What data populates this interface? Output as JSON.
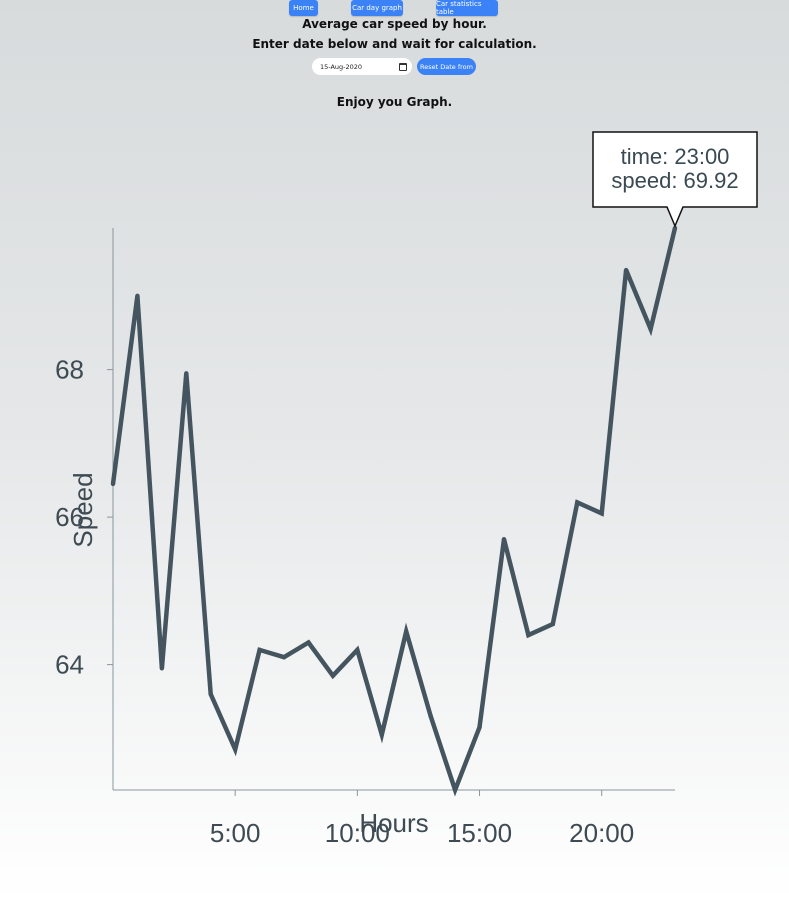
{
  "nav": {
    "home": "Home",
    "day_graph": "Car day graph",
    "stats_table": "Car statistics table"
  },
  "header": {
    "title": "Average car speed by hour.",
    "instruction": "Enter date below and wait for calculation.",
    "footer_text": "Enjoy you Graph."
  },
  "form": {
    "date_value": "15-Aug-2020",
    "reset_label": "Reset Date from"
  },
  "tooltip": {
    "time_line": "time: 23:00",
    "speed_line": "speed: 69.92"
  },
  "colors": {
    "line": "#455560",
    "accent": "#3b82f6"
  },
  "chart_data": {
    "type": "line",
    "xlabel": "Hours",
    "ylabel": "Speed",
    "x": [
      0,
      1,
      2,
      3,
      4,
      5,
      6,
      7,
      8,
      9,
      10,
      11,
      12,
      13,
      14,
      15,
      16,
      17,
      18,
      19,
      20,
      21,
      22,
      23
    ],
    "values": [
      66.45,
      69.0,
      63.95,
      67.95,
      63.6,
      62.85,
      64.2,
      64.1,
      64.3,
      63.85,
      64.2,
      63.05,
      64.45,
      63.3,
      62.3,
      63.15,
      65.7,
      64.4,
      64.55,
      66.2,
      66.05,
      69.35,
      68.55,
      69.92
    ],
    "xlim": [
      0,
      23
    ],
    "ylim": [
      62.3,
      69.92
    ],
    "xticks": [
      5,
      10,
      15,
      20
    ],
    "xtick_labels": [
      "5:00",
      "10:00",
      "15:00",
      "20:00"
    ],
    "yticks": [
      64,
      66,
      68
    ],
    "ytick_labels": [
      "64",
      "66",
      "68"
    ],
    "grid": false,
    "highlight_index": 23
  }
}
